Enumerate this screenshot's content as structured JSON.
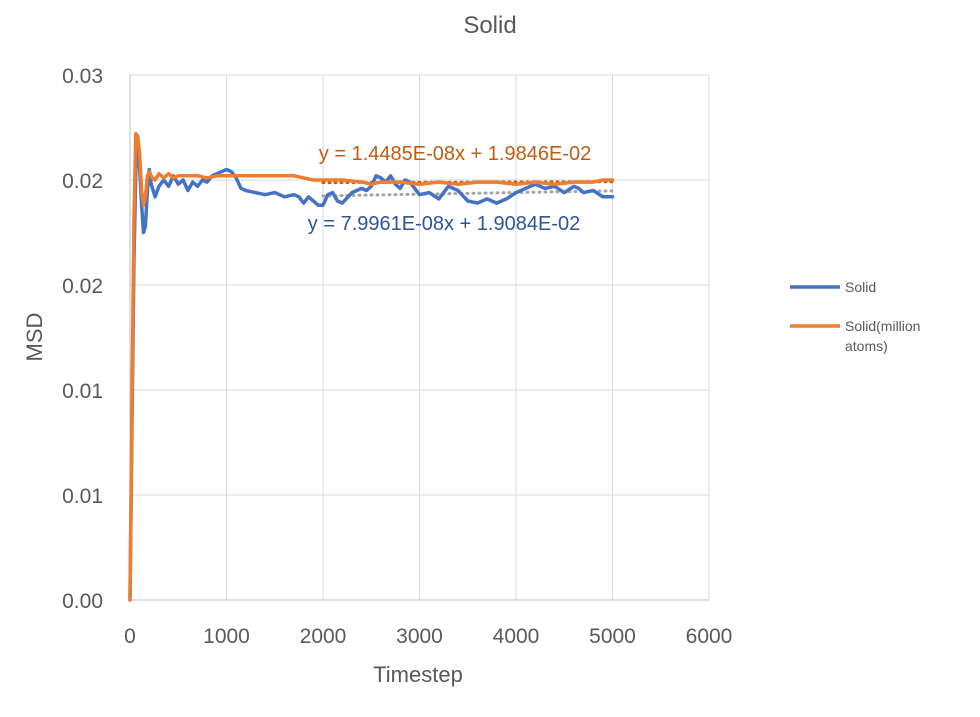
{
  "chart_data": {
    "type": "line",
    "title": "Solid",
    "xlabel": "Timestep",
    "ylabel": "MSD",
    "xlim": [
      0,
      6000
    ],
    "ylim": [
      0,
      0.025
    ],
    "x_ticks": [
      0,
      1000,
      2000,
      3000,
      4000,
      5000,
      6000
    ],
    "x_tick_labels": [
      "0",
      "1000",
      "2000",
      "3000",
      "4000",
      "5000",
      "6000"
    ],
    "y_ticks": [
      0,
      0.005,
      0.01,
      0.015,
      0.02,
      0.025
    ],
    "y_tick_labels": [
      "0.00",
      "0.01",
      "0.01",
      "0.02",
      "0.02",
      "0.03"
    ],
    "grid": true,
    "legend_position": "right",
    "series": [
      {
        "name": "Solid",
        "color": "#4472C4",
        "x": [
          0,
          20,
          40,
          60,
          80,
          100,
          120,
          140,
          160,
          180,
          200,
          220,
          260,
          300,
          350,
          400,
          450,
          500,
          550,
          600,
          650,
          700,
          750,
          800,
          850,
          900,
          950,
          1000,
          1050,
          1100,
          1150,
          1200,
          1300,
          1400,
          1500,
          1600,
          1700,
          1750,
          1800,
          1850,
          1900,
          1950,
          2000,
          2050,
          2100,
          2150,
          2200,
          2300,
          2400,
          2450,
          2500,
          2550,
          2600,
          2650,
          2700,
          2750,
          2800,
          2850,
          2900,
          2950,
          3000,
          3100,
          3200,
          3250,
          3300,
          3400,
          3500,
          3600,
          3700,
          3800,
          3900,
          4000,
          4100,
          4200,
          4250,
          4300,
          4400,
          4500,
          4600,
          4650,
          4700,
          4800,
          4900,
          5000
        ],
        "y": [
          0,
          0.008,
          0.016,
          0.0205,
          0.0218,
          0.0205,
          0.0188,
          0.0175,
          0.0178,
          0.0195,
          0.0205,
          0.0198,
          0.0192,
          0.0197,
          0.02,
          0.0197,
          0.0202,
          0.0198,
          0.02,
          0.0195,
          0.0199,
          0.0197,
          0.02,
          0.0199,
          0.0202,
          0.0203,
          0.0204,
          0.0205,
          0.0204,
          0.0201,
          0.0196,
          0.0195,
          0.0194,
          0.0193,
          0.0194,
          0.0192,
          0.0193,
          0.0192,
          0.0189,
          0.0192,
          0.019,
          0.0188,
          0.0188,
          0.0193,
          0.0194,
          0.019,
          0.0189,
          0.0194,
          0.0196,
          0.0195,
          0.0197,
          0.0202,
          0.0201,
          0.0199,
          0.0202,
          0.0198,
          0.0196,
          0.02,
          0.0199,
          0.0196,
          0.0193,
          0.0194,
          0.0191,
          0.0194,
          0.0197,
          0.0195,
          0.019,
          0.0189,
          0.0191,
          0.0189,
          0.0191,
          0.0194,
          0.0196,
          0.0198,
          0.0197,
          0.0196,
          0.0197,
          0.0194,
          0.0197,
          0.0196,
          0.0194,
          0.0195,
          0.0192,
          0.0192
        ]
      },
      {
        "name": "Solid(million atoms)",
        "color": "#ED7D31",
        "x": [
          0,
          20,
          40,
          60,
          80,
          100,
          120,
          140,
          160,
          180,
          200,
          230,
          260,
          300,
          350,
          400,
          450,
          500,
          600,
          700,
          800,
          900,
          1000,
          1100,
          1200,
          1300,
          1400,
          1500,
          1600,
          1700,
          1800,
          1900,
          2000,
          2200,
          2400,
          2500,
          2600,
          2800,
          3000,
          3200,
          3400,
          3600,
          3800,
          4000,
          4200,
          4400,
          4600,
          4800,
          4900,
          5000
        ],
        "y": [
          0,
          0.009,
          0.018,
          0.0222,
          0.0221,
          0.0212,
          0.0195,
          0.0188,
          0.0192,
          0.0202,
          0.0204,
          0.0201,
          0.02,
          0.0203,
          0.0201,
          0.0203,
          0.0201,
          0.0202,
          0.0202,
          0.0202,
          0.0201,
          0.0202,
          0.0202,
          0.0202,
          0.0202,
          0.0202,
          0.0202,
          0.0202,
          0.0202,
          0.0202,
          0.0201,
          0.02,
          0.02,
          0.02,
          0.0199,
          0.0198,
          0.0199,
          0.0199,
          0.0198,
          0.0199,
          0.0198,
          0.0199,
          0.0199,
          0.0198,
          0.0199,
          0.0198,
          0.0199,
          0.0199,
          0.02,
          0.02
        ]
      }
    ],
    "trendlines": [
      {
        "series": "Solid(million atoms)",
        "slope": 1.4485e-08,
        "intercept": 0.019846,
        "x_range": [
          2000,
          5000
        ],
        "color": "#C55A11",
        "label": "y = 1.4485E-08x + 1.9846E-02"
      },
      {
        "series": "Solid",
        "slope": 7.9961e-08,
        "intercept": 0.019084,
        "x_range": [
          2000,
          5000
        ],
        "color": "#A5A5A5",
        "label": "y = 7.9961E-08x + 1.9084E-02"
      }
    ],
    "annotation_colors": [
      "#C55A11",
      "#2F5597"
    ]
  }
}
